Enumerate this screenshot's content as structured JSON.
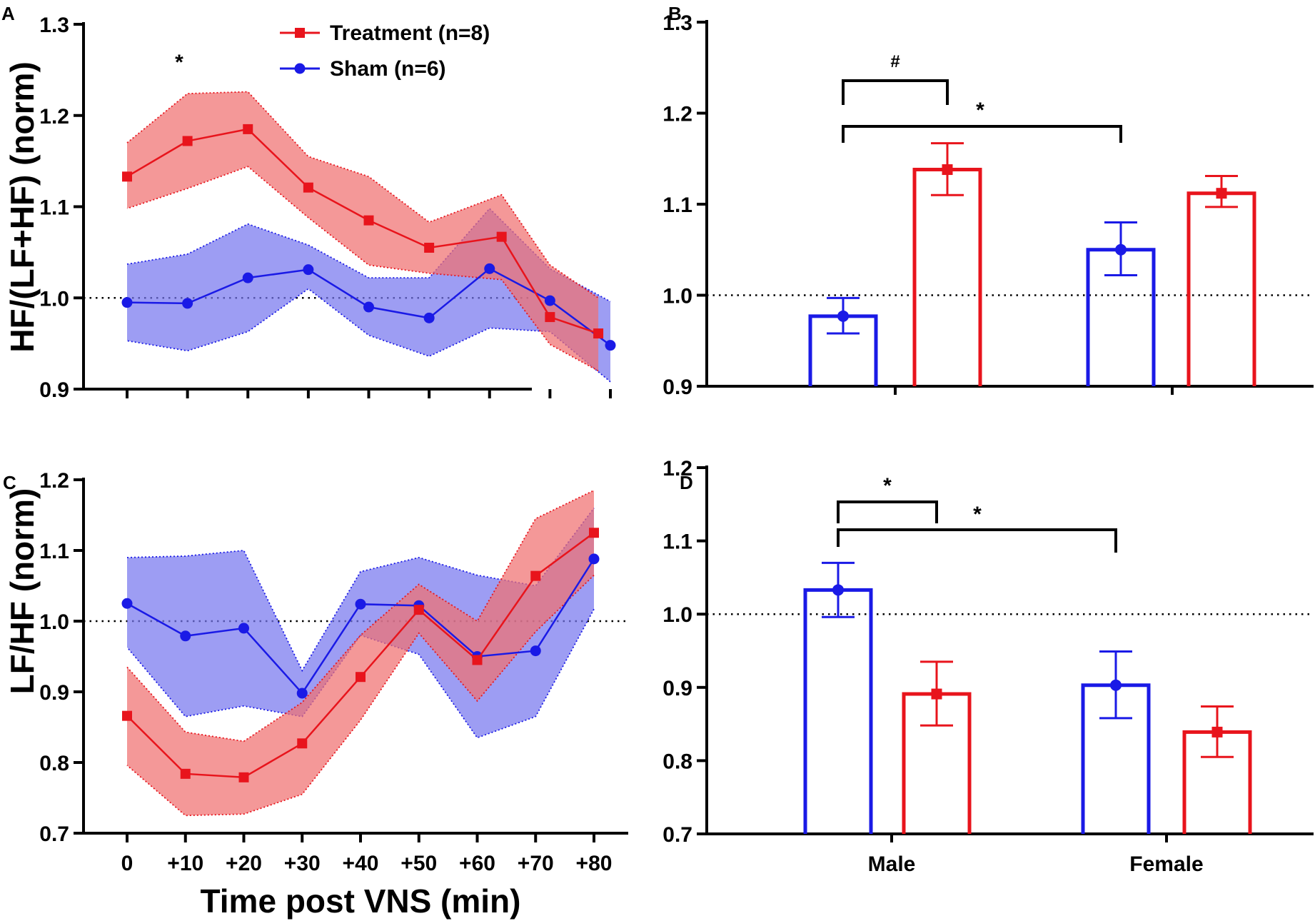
{
  "colors": {
    "treatment": "#e8141c",
    "sham": "#1a1ae6",
    "treatment_band": "#f07070",
    "sham_band": "#7777ee"
  },
  "chart_data": [
    {
      "panel": "A",
      "type": "line",
      "ylabel": "HF/(LF+HF) (norm)",
      "ylim": [
        0.9,
        1.3
      ],
      "yticks": [
        "0.9",
        "1.0",
        "1.1",
        "1.2",
        "1.3"
      ],
      "reference_line": 1.0,
      "x_positions": [
        0,
        10,
        20,
        30,
        40,
        50,
        60,
        70,
        80
      ],
      "legend": [
        {
          "name": "Treatment (n=8)",
          "color": "#e8141c",
          "marker": "square"
        },
        {
          "name": "Sham (n=6)",
          "color": "#1a1ae6",
          "marker": "circle"
        }
      ],
      "series": [
        {
          "name": "Treatment (n=8)",
          "x": [
            0,
            10,
            20,
            30,
            40,
            50,
            62,
            70,
            78
          ],
          "values": [
            1.133,
            1.172,
            1.185,
            1.121,
            1.085,
            1.055,
            1.067,
            0.979,
            0.961
          ],
          "upper": [
            1.17,
            1.224,
            1.226,
            1.155,
            1.133,
            1.083,
            1.113,
            1.036,
            1.0
          ],
          "lower": [
            1.098,
            1.12,
            1.144,
            1.088,
            1.036,
            1.027,
            1.02,
            0.949,
            0.92
          ]
        },
        {
          "name": "Sham (n=6)",
          "x": [
            0,
            10,
            20,
            30,
            40,
            50,
            60,
            70,
            80
          ],
          "values": [
            0.995,
            0.994,
            1.022,
            1.031,
            0.99,
            0.978,
            1.032,
            0.997,
            0.948
          ],
          "upper": [
            1.037,
            1.048,
            1.081,
            1.058,
            1.022,
            1.022,
            1.098,
            1.032,
            0.996
          ],
          "lower": [
            0.953,
            0.942,
            0.963,
            1.01,
            0.959,
            0.936,
            0.967,
            0.963,
            0.908
          ]
        }
      ],
      "annotations": [
        "*"
      ]
    },
    {
      "panel": "B",
      "type": "bar",
      "ylim": [
        0.9,
        1.3
      ],
      "yticks": [
        "0.9",
        "1.0",
        "1.1",
        "1.2",
        "1.3"
      ],
      "reference_line": 1.0,
      "series": [
        {
          "name": "Sham",
          "group": "Male",
          "value": 0.977,
          "err_low": 0.958,
          "err_high": 0.997
        },
        {
          "name": "Treatment",
          "group": "Male",
          "value": 1.138,
          "err_low": 1.11,
          "err_high": 1.167
        },
        {
          "name": "Sham",
          "group": "Female",
          "value": 1.05,
          "err_low": 1.022,
          "err_high": 1.08
        },
        {
          "name": "Treatment",
          "group": "Female",
          "value": 1.112,
          "err_low": 1.097,
          "err_high": 1.131
        }
      ],
      "annotations": [
        "#",
        "*"
      ]
    },
    {
      "panel": "C",
      "type": "line",
      "ylabel": "LF/HF (norm)",
      "xlabel": "Time post VNS (min)",
      "xticklabels": [
        "0",
        "+10",
        "+20",
        "+30",
        "+40",
        "+50",
        "+60",
        "+70",
        "+80"
      ],
      "ylim": [
        0.7,
        1.2
      ],
      "yticks": [
        "0.7",
        "0.8",
        "0.9",
        "1.0",
        "1.1",
        "1.2"
      ],
      "reference_line": 1.0,
      "series": [
        {
          "name": "Treatment (n=8)",
          "x": [
            0,
            10,
            20,
            30,
            40,
            50,
            60,
            70,
            80
          ],
          "values": [
            0.866,
            0.784,
            0.779,
            0.827,
            0.921,
            1.016,
            0.945,
            1.064,
            1.125
          ],
          "upper": [
            0.935,
            0.843,
            0.83,
            0.885,
            0.98,
            1.052,
            1.0,
            1.145,
            1.185
          ],
          "lower": [
            0.796,
            0.725,
            0.727,
            0.755,
            0.86,
            0.983,
            0.887,
            0.985,
            1.065
          ]
        },
        {
          "name": "Sham (n=6)",
          "x": [
            0,
            10,
            20,
            30,
            40,
            50,
            60,
            70,
            80
          ],
          "values": [
            1.025,
            0.979,
            0.99,
            0.898,
            1.024,
            1.022,
            0.95,
            0.958,
            1.088
          ],
          "upper": [
            1.09,
            1.092,
            1.1,
            0.93,
            1.07,
            1.09,
            1.065,
            1.05,
            1.16
          ],
          "lower": [
            0.963,
            0.865,
            0.88,
            0.865,
            0.98,
            0.953,
            0.835,
            0.865,
            1.017
          ]
        }
      ]
    },
    {
      "panel": "D",
      "type": "bar",
      "categories": [
        "Male",
        "Female"
      ],
      "ylim": [
        0.7,
        1.2
      ],
      "yticks": [
        "0.7",
        "0.8",
        "0.9",
        "1.0",
        "1.1",
        "1.2"
      ],
      "reference_line": 1.0,
      "series": [
        {
          "name": "Sham",
          "group": "Male",
          "value": 1.033,
          "err_low": 0.996,
          "err_high": 1.07
        },
        {
          "name": "Treatment",
          "group": "Male",
          "value": 0.891,
          "err_low": 0.848,
          "err_high": 0.935
        },
        {
          "name": "Sham",
          "group": "Female",
          "value": 0.903,
          "err_low": 0.858,
          "err_high": 0.949
        },
        {
          "name": "Treatment",
          "group": "Female",
          "value": 0.839,
          "err_low": 0.805,
          "err_high": 0.874
        }
      ],
      "annotations": [
        "*",
        "*"
      ]
    }
  ]
}
